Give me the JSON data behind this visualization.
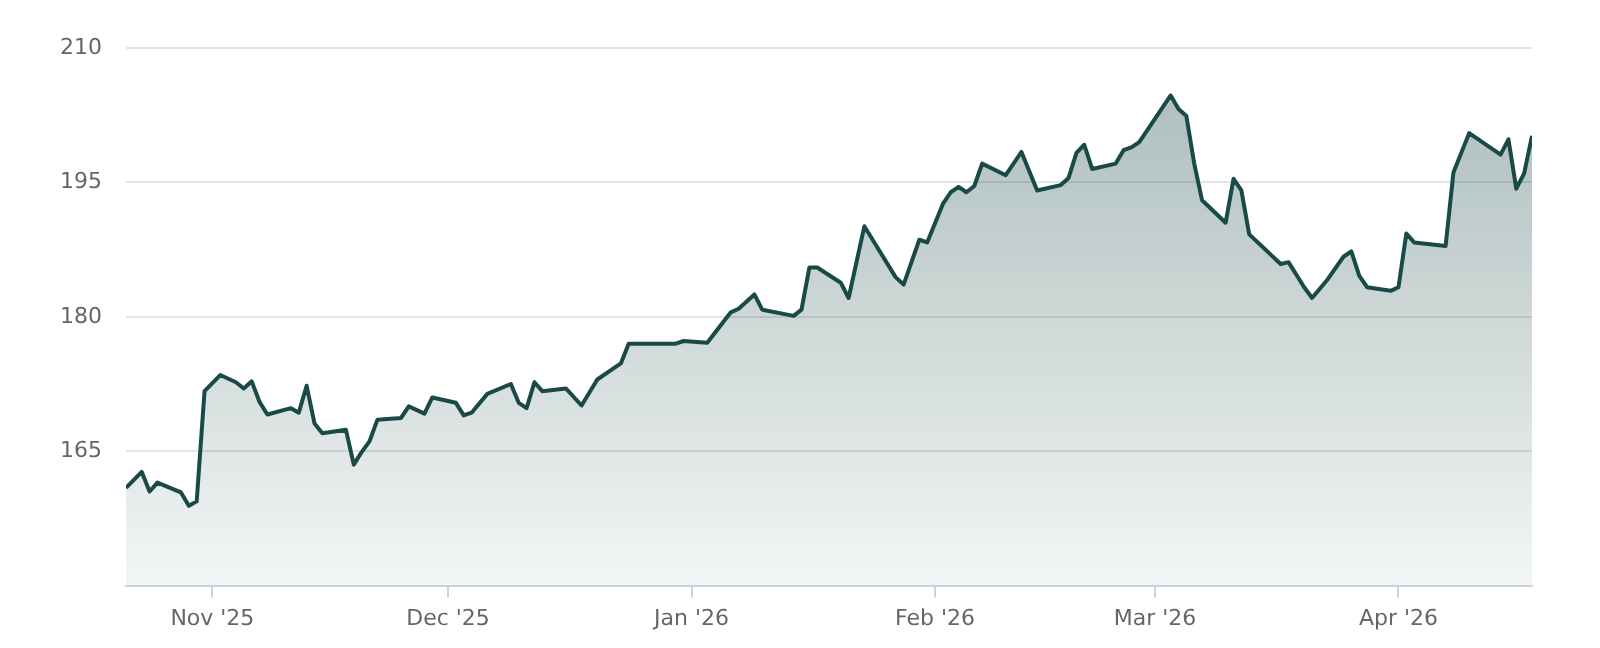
{
  "chart_data": {
    "type": "area",
    "x": [
      "2025-10-21",
      "2025-10-23",
      "2025-10-24",
      "2025-10-25",
      "2025-10-28",
      "2025-10-29",
      "2025-10-30",
      "2025-10-31",
      "2025-11-02",
      "2025-11-04",
      "2025-11-05",
      "2025-11-06",
      "2025-11-07",
      "2025-11-08",
      "2025-11-11",
      "2025-11-12",
      "2025-11-13",
      "2025-11-14",
      "2025-11-15",
      "2025-11-18",
      "2025-11-19",
      "2025-11-20",
      "2025-11-21",
      "2025-11-22",
      "2025-11-25",
      "2025-11-26",
      "2025-11-28",
      "2025-11-29",
      "2025-12-02",
      "2025-12-03",
      "2025-12-04",
      "2025-12-06",
      "2025-12-09",
      "2025-12-10",
      "2025-12-11",
      "2025-12-12",
      "2025-12-13",
      "2025-12-16",
      "2025-12-18",
      "2025-12-20",
      "2025-12-23",
      "2025-12-24",
      "2025-12-30",
      "2025-12-31",
      "2026-01-03",
      "2026-01-06",
      "2026-01-07",
      "2026-01-09",
      "2026-01-10",
      "2026-01-14",
      "2026-01-15",
      "2026-01-16",
      "2026-01-17",
      "2026-01-20",
      "2026-01-21",
      "2026-01-23",
      "2026-01-27",
      "2026-01-28",
      "2026-01-30",
      "2026-01-31",
      "2026-02-02",
      "2026-02-03",
      "2026-02-04",
      "2026-02-05",
      "2026-02-06",
      "2026-02-07",
      "2026-02-10",
      "2026-02-12",
      "2026-02-14",
      "2026-02-17",
      "2026-02-18",
      "2026-02-19",
      "2026-02-20",
      "2026-02-21",
      "2026-02-24",
      "2026-02-25",
      "2026-02-26",
      "2026-02-27",
      "2026-03-03",
      "2026-03-04",
      "2026-03-05",
      "2026-03-06",
      "2026-03-07",
      "2026-03-10",
      "2026-03-11",
      "2026-03-12",
      "2026-03-13",
      "2026-03-17",
      "2026-03-18",
      "2026-03-20",
      "2026-03-21",
      "2026-03-23",
      "2026-03-25",
      "2026-03-26",
      "2026-03-27",
      "2026-03-28",
      "2026-03-31",
      "2026-04-01",
      "2026-04-02",
      "2026-04-03",
      "2026-04-07",
      "2026-04-08",
      "2026-04-10",
      "2026-04-14",
      "2026-04-15",
      "2026-04-16",
      "2026-04-17",
      "2026-04-18"
    ],
    "series": [
      {
        "color": "#1a4a45",
        "values": [
          160.9,
          162.7,
          160.5,
          161.5,
          160.4,
          158.9,
          159.4,
          171.7,
          173.5,
          172.7,
          172.0,
          172.8,
          170.5,
          169.1,
          169.8,
          169.3,
          172.3,
          168.1,
          167.0,
          167.4,
          163.5,
          164.9,
          166.1,
          168.5,
          168.7,
          170.0,
          169.2,
          171.0,
          170.4,
          169.0,
          169.3,
          171.4,
          172.5,
          170.4,
          169.8,
          172.7,
          171.7,
          172.0,
          170.1,
          173.0,
          174.8,
          177.0,
          177.0,
          177.3,
          177.1,
          180.5,
          180.9,
          182.5,
          180.8,
          180.1,
          180.8,
          185.5,
          185.5,
          183.8,
          182.1,
          190.1,
          184.4,
          183.6,
          188.6,
          188.3,
          192.6,
          193.9,
          194.5,
          193.9,
          194.6,
          197.1,
          195.8,
          198.4,
          194.1,
          194.7,
          195.5,
          198.3,
          199.2,
          196.5,
          197.1,
          198.6,
          198.9,
          199.5,
          204.7,
          203.2,
          202.4,
          197.1,
          193.0,
          190.5,
          195.4,
          194.1,
          189.2,
          185.9,
          186.1,
          183.3,
          182.1,
          184.2,
          186.7,
          187.3,
          184.6,
          183.3,
          182.9,
          183.3,
          189.3,
          188.3,
          187.9,
          196.1,
          200.5,
          198.1,
          199.8,
          194.3,
          196.0,
          200.2
        ]
      }
    ],
    "xlim": [
      "2025-10-21",
      "2026-04-18"
    ],
    "xticks": [
      {
        "value": "2025-11-01",
        "label": "Nov '25"
      },
      {
        "value": "2025-12-01",
        "label": "Dec '25"
      },
      {
        "value": "2026-01-01",
        "label": "Jan '26"
      },
      {
        "value": "2026-02-01",
        "label": "Feb '26"
      },
      {
        "value": "2026-03-01",
        "label": "Mar '26"
      },
      {
        "value": "2026-04-01",
        "label": "Apr '26"
      }
    ],
    "ylim": [
      150,
      210
    ],
    "yticks": [
      165,
      180,
      195,
      210
    ],
    "grid": "y",
    "legend": false,
    "marker": "none",
    "line_style": "solid"
  }
}
